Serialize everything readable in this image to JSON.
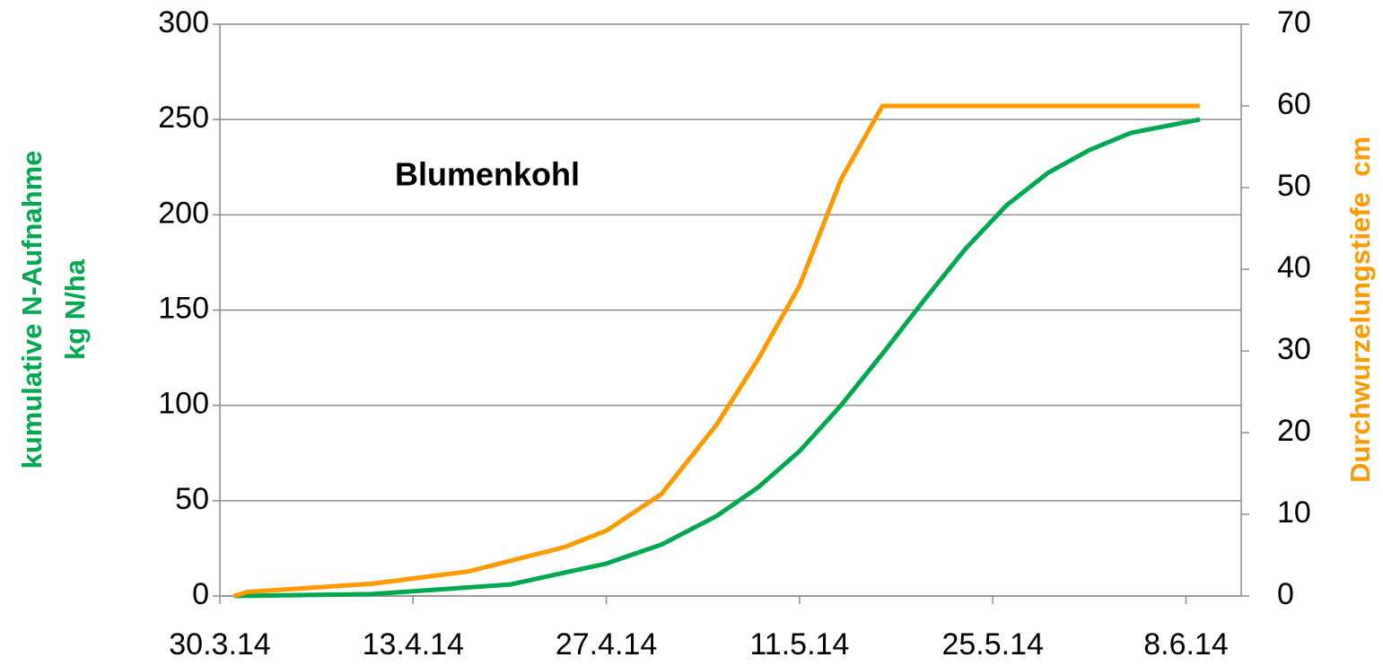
{
  "chart_data": {
    "type": "line",
    "annotation": "Blumenkohl",
    "ylabel": [
      "kumulative N-Aufnahme",
      "kg N/ha"
    ],
    "y2label": "Durchwurzelungstiefe  cm",
    "xlim": [
      "2014-03-30",
      "2014-06-12"
    ],
    "xticks": [
      {
        "value": "2014-03-30",
        "label": "30.3.14"
      },
      {
        "value": "2014-04-13",
        "label": "13.4.14"
      },
      {
        "value": "2014-04-27",
        "label": "27.4.14"
      },
      {
        "value": "2014-05-11",
        "label": "11.5.14"
      },
      {
        "value": "2014-05-25",
        "label": "25.5.14"
      },
      {
        "value": "2014-06-08",
        "label": "8.6.14"
      }
    ],
    "ylim": [
      0,
      300
    ],
    "yticks": [
      0,
      50,
      100,
      150,
      200,
      250,
      300
    ],
    "y2lim": [
      0,
      70
    ],
    "y2ticks": [
      0,
      10,
      20,
      30,
      40,
      50,
      60,
      70
    ],
    "grid": true,
    "ylabel_color": "#00a84f",
    "y2label_color": "#ff9900",
    "series": [
      {
        "color": "#00a84f",
        "axis": "y",
        "x": [
          "2014-03-31",
          "2014-04-10",
          "2014-04-20",
          "2014-04-27",
          "2014-05-01",
          "2014-05-05",
          "2014-05-08",
          "2014-05-11",
          "2014-05-14",
          "2014-05-17",
          "2014-05-20",
          "2014-05-23",
          "2014-05-26",
          "2014-05-29",
          "2014-06-01",
          "2014-06-04",
          "2014-06-09"
        ],
        "values": [
          0,
          1,
          6,
          17,
          27,
          42,
          57,
          76,
          100,
          127,
          155,
          182,
          205,
          222,
          234,
          243,
          250
        ]
      },
      {
        "color": "#ff9900",
        "axis": "y2",
        "x": [
          "2014-03-31",
          "2014-04-01",
          "2014-04-10",
          "2014-04-17",
          "2014-04-24",
          "2014-04-27",
          "2014-05-01",
          "2014-05-05",
          "2014-05-08",
          "2014-05-11",
          "2014-05-14",
          "2014-05-16",
          "2014-05-17",
          "2014-06-09"
        ],
        "values": [
          0,
          0.5,
          1.5,
          3,
          6,
          8,
          12.5,
          21,
          29,
          38,
          51,
          57,
          60,
          60
        ]
      }
    ]
  }
}
